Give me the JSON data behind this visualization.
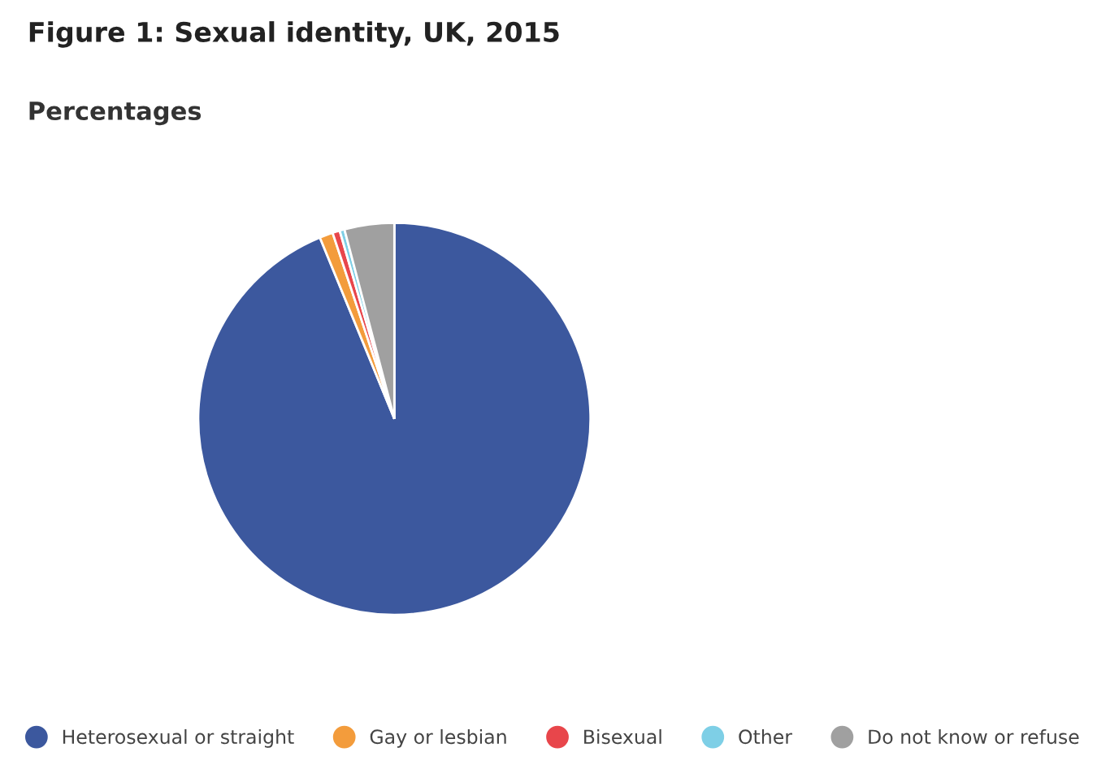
{
  "chart_data": {
    "type": "pie",
    "title": "Figure 1: Sexual identity, UK, 2015",
    "subtitle": "Percentages",
    "categories": [
      "Heterosexual or straight",
      "Gay or lesbian",
      "Bisexual",
      "Other",
      "Do not know or refuse"
    ],
    "values": [
      93.8,
      1.1,
      0.6,
      0.4,
      4.1
    ],
    "colors": [
      "#3c589e",
      "#f39c3c",
      "#e8464b",
      "#7ecfe6",
      "#a0a0a0"
    ],
    "legend": "bottom"
  }
}
